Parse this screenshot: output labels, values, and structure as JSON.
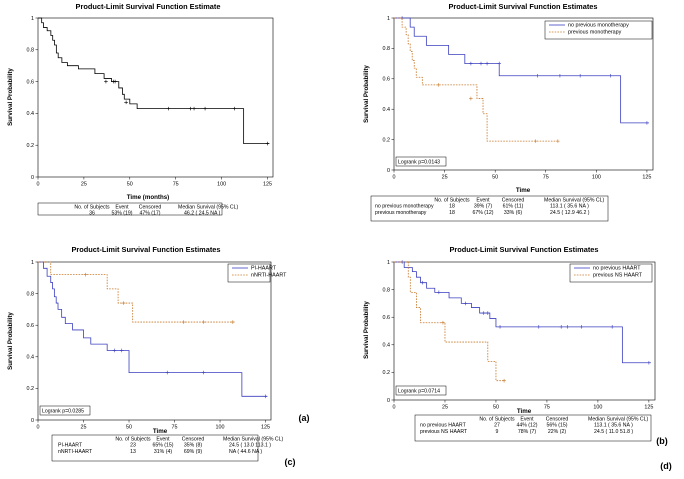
{
  "chart_data": [
    {
      "type": "line",
      "panel_label": "(a)",
      "title": "Product-Limit Survival Function Estimate",
      "xlabel": "Time (months)",
      "ylabel": "Survival Probability",
      "xlim": [
        0,
        128
      ],
      "ylim": [
        0,
        1
      ],
      "xticks": [
        0,
        25,
        50,
        75,
        100,
        125
      ],
      "yticks": [
        0,
        0.2,
        0.4,
        0.6,
        0.8,
        1.0
      ],
      "xtick_labels": [
        "0",
        "25",
        "50",
        "75",
        "100",
        "125"
      ],
      "ytick_labels": [
        "0",
        "0.2",
        "0.4",
        "0.6",
        "0.8",
        "1"
      ],
      "grid": false,
      "logrank": "",
      "legend": [],
      "series": [
        {
          "color": "#000000",
          "dash": false,
          "steps": [
            [
              0,
              1.0
            ],
            [
              2,
              0.97
            ],
            [
              3,
              0.94
            ],
            [
              5,
              0.92
            ],
            [
              7,
              0.89
            ],
            [
              8,
              0.86
            ],
            [
              9,
              0.83
            ],
            [
              10,
              0.78
            ],
            [
              11,
              0.75
            ],
            [
              13,
              0.72
            ],
            [
              16,
              0.7
            ],
            [
              22,
              0.68
            ],
            [
              31,
              0.65
            ],
            [
              36,
              0.62
            ],
            [
              40,
              0.6
            ],
            [
              44,
              0.56
            ],
            [
              46,
              0.52
            ],
            [
              47,
              0.49
            ],
            [
              50,
              0.46
            ],
            [
              54,
              0.43
            ],
            [
              112,
              0.21
            ],
            [
              126,
              0.21
            ]
          ],
          "censored": [
            [
              37,
              0.6
            ],
            [
              41,
              0.6
            ],
            [
              42,
              0.6
            ],
            [
              48,
              0.47
            ],
            [
              71,
              0.43
            ],
            [
              83,
              0.43
            ],
            [
              85,
              0.43
            ],
            [
              91,
              0.43
            ],
            [
              107,
              0.43
            ],
            [
              125,
              0.21
            ]
          ]
        }
      ],
      "table": {
        "columns": [
          "No. of Subjects",
          "Event",
          "Censored",
          "Median Survival (95% CL)"
        ],
        "rows": [
          {
            "label": "",
            "subjects": "36",
            "event": "53% (19)",
            "censored": "47% (17)",
            "median": "46.2  ( 24.5   NA  )"
          }
        ]
      }
    },
    {
      "type": "line",
      "panel_label": "(b)",
      "title": "Product-Limit Survival Function Estimates",
      "xlabel": "Time",
      "ylabel": "Survival Probability",
      "xlim": [
        0,
        128
      ],
      "ylim": [
        0,
        1
      ],
      "xticks": [
        0,
        25,
        50,
        75,
        100,
        125
      ],
      "yticks": [
        0,
        0.2,
        0.4,
        0.6,
        0.8,
        1.0
      ],
      "xtick_labels": [
        "0",
        "25",
        "50",
        "75",
        "100",
        "125"
      ],
      "ytick_labels": [
        "0",
        "0.2",
        "0.4",
        "0.6",
        "0.8",
        "1"
      ],
      "grid": false,
      "logrank": "Logrank p=0.0143",
      "legend": [
        "no previous  monotherapy",
        "previous  monotherapy"
      ],
      "series": [
        {
          "name": "no previous  monotherapy",
          "color": "#3b3fbf",
          "dash": false,
          "steps": [
            [
              0,
              1.0
            ],
            [
              8,
              0.94
            ],
            [
              10,
              0.88
            ],
            [
              16,
              0.82
            ],
            [
              27,
              0.76
            ],
            [
              35,
              0.7
            ],
            [
              52,
              0.62
            ],
            [
              112,
              0.31
            ],
            [
              126,
              0.31
            ]
          ],
          "censored": [
            [
              4,
              1.0
            ],
            [
              38,
              0.7
            ],
            [
              43,
              0.7
            ],
            [
              46,
              0.7
            ],
            [
              52,
              0.7
            ],
            [
              71,
              0.62
            ],
            [
              82,
              0.62
            ],
            [
              92,
              0.62
            ],
            [
              107,
              0.62
            ],
            [
              125,
              0.31
            ]
          ]
        },
        {
          "name": "previous  monotherapy",
          "color": "#c8782a",
          "dash": true,
          "steps": [
            [
              0,
              1.0
            ],
            [
              4,
              0.94
            ],
            [
              6,
              0.89
            ],
            [
              7,
              0.83
            ],
            [
              8,
              0.78
            ],
            [
              9,
              0.72
            ],
            [
              10,
              0.67
            ],
            [
              11,
              0.61
            ],
            [
              14,
              0.56
            ],
            [
              41,
              0.47
            ],
            [
              44,
              0.37
            ],
            [
              46,
              0.19
            ],
            [
              81,
              0.19
            ]
          ],
          "censored": [
            [
              22,
              0.56
            ],
            [
              38,
              0.47
            ],
            [
              70,
              0.19
            ],
            [
              81,
              0.19
            ]
          ]
        }
      ],
      "table": {
        "columns": [
          "No. of Subjects",
          "Event",
          "Censored",
          "Median Survival (95% CL)"
        ],
        "rows": [
          {
            "label": "no previous monotherapy",
            "subjects": "18",
            "event": "39% (7)",
            "censored": "61% (11)",
            "median": "113.1  ( 35.6   NA  )"
          },
          {
            "label": "previous monotherapy",
            "subjects": "18",
            "event": "67% (12)",
            "censored": "33% (6)",
            "median": "24.5  ( 12.9   46.2 )"
          }
        ]
      }
    },
    {
      "type": "line",
      "panel_label": "(c)",
      "title": "Product-Limit Survival Function Estimates",
      "xlabel": "Time",
      "ylabel": "Survival Probability",
      "xlim": [
        0,
        128
      ],
      "ylim": [
        0,
        1
      ],
      "xticks": [
        0,
        25,
        50,
        75,
        100,
        125
      ],
      "yticks": [
        0,
        0.2,
        0.4,
        0.6,
        0.8,
        1.0
      ],
      "xtick_labels": [
        "0",
        "25",
        "50",
        "75",
        "100",
        "125"
      ],
      "ytick_labels": [
        "0",
        "0.2",
        "0.4",
        "0.6",
        "0.8",
        "1"
      ],
      "grid": false,
      "logrank": "Logrank p=0.0285",
      "legend": [
        "PI-HAART",
        "nNRTI-HAART"
      ],
      "series": [
        {
          "name": "PI-HAART",
          "color": "#3b3fbf",
          "dash": false,
          "steps": [
            [
              0,
              1.0
            ],
            [
              3,
              0.96
            ],
            [
              5,
              0.91
            ],
            [
              7,
              0.87
            ],
            [
              8,
              0.83
            ],
            [
              9,
              0.78
            ],
            [
              10,
              0.74
            ],
            [
              11,
              0.7
            ],
            [
              13,
              0.65
            ],
            [
              15,
              0.61
            ],
            [
              19,
              0.57
            ],
            [
              25,
              0.52
            ],
            [
              29,
              0.48
            ],
            [
              38,
              0.44
            ],
            [
              44,
              0.44
            ],
            [
              50,
              0.3
            ],
            [
              112,
              0.15
            ],
            [
              126,
              0.15
            ]
          ],
          "censored": [
            [
              42,
              0.44
            ],
            [
              46,
              0.44
            ],
            [
              71,
              0.3
            ],
            [
              91,
              0.3
            ],
            [
              125,
              0.15
            ]
          ]
        },
        {
          "name": "nNRTI-HAART",
          "color": "#c8782a",
          "dash": true,
          "steps": [
            [
              0,
              1.0
            ],
            [
              7,
              0.92
            ],
            [
              38,
              0.83
            ],
            [
              44,
              0.74
            ],
            [
              52,
              0.62
            ],
            [
              108,
              0.62
            ]
          ],
          "censored": [
            [
              26,
              0.92
            ],
            [
              47,
              0.74
            ],
            [
              80,
              0.62
            ],
            [
              91,
              0.62
            ],
            [
              107,
              0.62
            ]
          ]
        }
      ],
      "table": {
        "columns": [
          "No. of Subjects",
          "Event",
          "Censored",
          "Median Survival (95% CL)"
        ],
        "rows": [
          {
            "label": "PI-HAART",
            "subjects": "23",
            "event": "65% (15)",
            "censored": "35% (8)",
            "median": "24.5  ( 13.0   113.1 )"
          },
          {
            "label": "nNRTI-HAART",
            "subjects": "13",
            "event": "31% (4)",
            "censored": "69% (9)",
            "median": "NA  ( 44.6   NA  )"
          }
        ]
      }
    },
    {
      "type": "line",
      "panel_label": "(d)",
      "title": "Product-Limit Survival Function Estimates",
      "xlabel": "Time",
      "ylabel": "Survival Probability",
      "xlim": [
        0,
        128
      ],
      "ylim": [
        0,
        1
      ],
      "xticks": [
        0,
        25,
        50,
        75,
        100,
        125
      ],
      "yticks": [
        0,
        0.2,
        0.4,
        0.6,
        0.8,
        1.0
      ],
      "xtick_labels": [
        "0",
        "25",
        "50",
        "75",
        "100",
        "125"
      ],
      "ytick_labels": [
        "0",
        "0.2",
        "0.4",
        "0.6",
        "0.8",
        "1"
      ],
      "grid": false,
      "logrank": "Logrank p=0.0714",
      "legend": [
        "no previous  HAART",
        "previous  NS HAART"
      ],
      "series": [
        {
          "name": "no previous  HAART",
          "color": "#3b3fbf",
          "dash": false,
          "steps": [
            [
              0,
              1.0
            ],
            [
              5,
              0.96
            ],
            [
              9,
              0.93
            ],
            [
              11,
              0.89
            ],
            [
              13,
              0.85
            ],
            [
              16,
              0.81
            ],
            [
              20,
              0.78
            ],
            [
              27,
              0.74
            ],
            [
              33,
              0.7
            ],
            [
              38,
              0.67
            ],
            [
              42,
              0.63
            ],
            [
              47,
              0.59
            ],
            [
              50,
              0.53
            ],
            [
              112,
              0.27
            ],
            [
              126,
              0.27
            ]
          ],
          "censored": [
            [
              4,
              1.0
            ],
            [
              14,
              0.85
            ],
            [
              22,
              0.78
            ],
            [
              35,
              0.7
            ],
            [
              44,
              0.63
            ],
            [
              46,
              0.63
            ],
            [
              52,
              0.53
            ],
            [
              71,
              0.53
            ],
            [
              82,
              0.53
            ],
            [
              85,
              0.53
            ],
            [
              92,
              0.53
            ],
            [
              107,
              0.53
            ],
            [
              125,
              0.27
            ]
          ]
        },
        {
          "name": "previous  NS HAART",
          "color": "#c8782a",
          "dash": true,
          "steps": [
            [
              0,
              1.0
            ],
            [
              7,
              0.89
            ],
            [
              8,
              0.78
            ],
            [
              11,
              0.67
            ],
            [
              13,
              0.56
            ],
            [
              25,
              0.42
            ],
            [
              46,
              0.28
            ],
            [
              50,
              0.14
            ],
            [
              54,
              0.14
            ]
          ],
          "censored": [
            [
              24,
              0.56
            ],
            [
              54,
              0.14
            ]
          ]
        }
      ],
      "table": {
        "columns": [
          "No. of Subjects",
          "Event",
          "Censored",
          "Median Survival (95% CL)"
        ],
        "rows": [
          {
            "label": "no previous HAART",
            "subjects": "27",
            "event": "44% (12)",
            "censored": "56% (15)",
            "median": "113.1  ( 35.6   NA  )"
          },
          {
            "label": "previous NS HAART",
            "subjects": "9",
            "event": "78% (7)",
            "censored": "22% (2)",
            "median": "24.5  ( 11.0   51.8 )"
          }
        ]
      }
    }
  ]
}
